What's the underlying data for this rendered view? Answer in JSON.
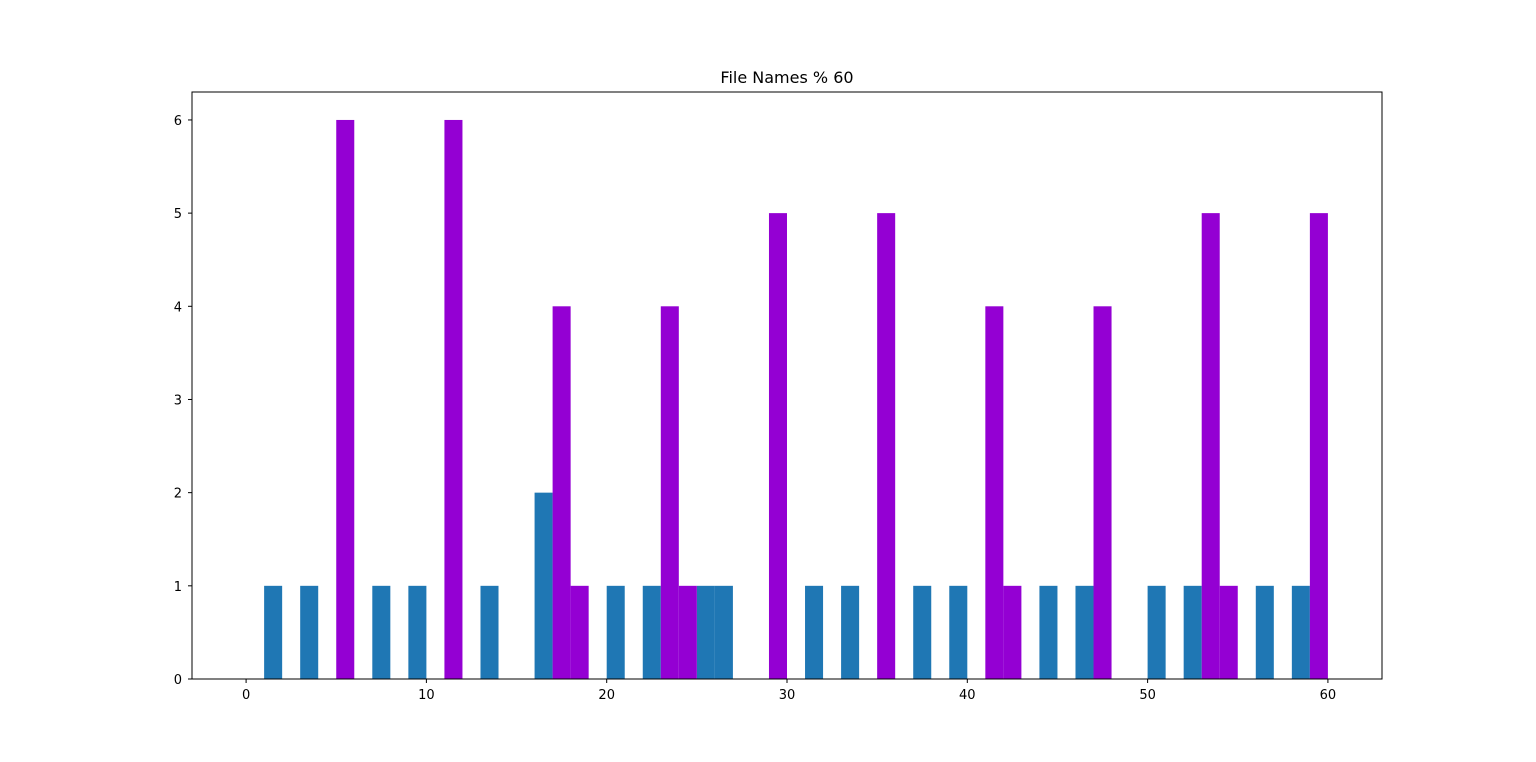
{
  "chart_data": {
    "type": "bar",
    "title": "File Names % 60",
    "xlabel": "",
    "ylabel": "",
    "xlim": [
      -3,
      63
    ],
    "ylim": [
      0,
      6.3
    ],
    "xticks": [
      0,
      10,
      20,
      30,
      40,
      50,
      60
    ],
    "yticks": [
      0,
      1,
      2,
      3,
      4,
      5,
      6
    ],
    "grid": false,
    "legend": "none",
    "bar_width": 1,
    "series": [
      {
        "color": "#1f77b4",
        "bars": [
          {
            "x": 1,
            "value": 1
          },
          {
            "x": 3,
            "value": 1
          },
          {
            "x": 7,
            "value": 1
          },
          {
            "x": 9,
            "value": 1
          },
          {
            "x": 13,
            "value": 1
          },
          {
            "x": 16,
            "value": 2
          },
          {
            "x": 20,
            "value": 1
          },
          {
            "x": 22,
            "value": 1
          },
          {
            "x": 25,
            "value": 1
          },
          {
            "x": 26,
            "value": 1
          },
          {
            "x": 31,
            "value": 1
          },
          {
            "x": 33,
            "value": 1
          },
          {
            "x": 37,
            "value": 1
          },
          {
            "x": 39,
            "value": 1
          },
          {
            "x": 44,
            "value": 1
          },
          {
            "x": 46,
            "value": 1
          },
          {
            "x": 50,
            "value": 1
          },
          {
            "x": 52,
            "value": 1
          },
          {
            "x": 56,
            "value": 1
          },
          {
            "x": 58,
            "value": 1
          }
        ]
      },
      {
        "color": "#9400d3",
        "bars": [
          {
            "x": 5,
            "value": 6
          },
          {
            "x": 11,
            "value": 6
          },
          {
            "x": 17,
            "value": 4
          },
          {
            "x": 18,
            "value": 1
          },
          {
            "x": 23,
            "value": 4
          },
          {
            "x": 24,
            "value": 1
          },
          {
            "x": 29,
            "value": 5
          },
          {
            "x": 35,
            "value": 5
          },
          {
            "x": 41,
            "value": 4
          },
          {
            "x": 42,
            "value": 1
          },
          {
            "x": 47,
            "value": 4
          },
          {
            "x": 53,
            "value": 5
          },
          {
            "x": 54,
            "value": 1
          },
          {
            "x": 59,
            "value": 5
          }
        ]
      }
    ]
  }
}
